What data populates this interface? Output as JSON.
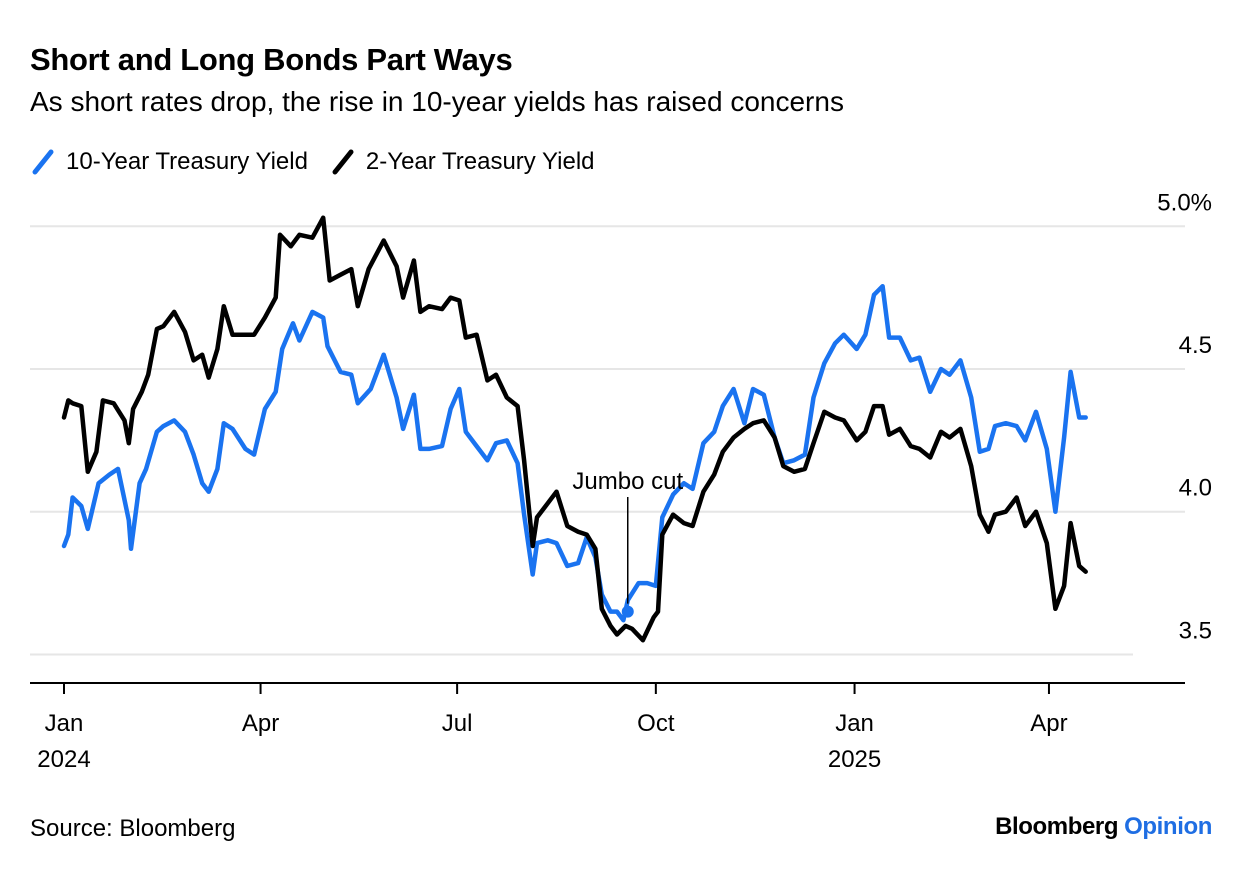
{
  "header": {
    "title": "Short and Long Bonds Part Ways",
    "subtitle": "As short rates drop, the rise in 10-year yields has raised concerns"
  },
  "legend": {
    "items": [
      {
        "label": "10-Year Treasury Yield",
        "color": "#1a73f0"
      },
      {
        "label": "2-Year Treasury Yield",
        "color": "#000000"
      }
    ]
  },
  "footer": {
    "source": "Source: Bloomberg",
    "brand_name": "Bloomberg",
    "brand_suffix": "Opinion"
  },
  "chart_data": {
    "type": "line",
    "y_ticks": [
      3.5,
      4.0,
      4.5,
      5.0
    ],
    "y_tick_labels": [
      "3.5",
      "4.0",
      "4.5",
      "5.0%"
    ],
    "ylim": [
      3.4,
      5.05
    ],
    "y_axis_position": "right",
    "grid": true,
    "legend_position": "top-left",
    "x_range": [
      "2024-01-01",
      "2025-04-20"
    ],
    "x_ticks": [
      {
        "date": "2024-01-01",
        "label": "Jan",
        "sublabel": "2024"
      },
      {
        "date": "2024-04-01",
        "label": "Apr",
        "sublabel": ""
      },
      {
        "date": "2024-07-01",
        "label": "Jul",
        "sublabel": ""
      },
      {
        "date": "2024-10-01",
        "label": "Oct",
        "sublabel": ""
      },
      {
        "date": "2025-01-01",
        "label": "Jan",
        "sublabel": "2025"
      },
      {
        "date": "2025-04-01",
        "label": "Apr",
        "sublabel": ""
      }
    ],
    "annotations": [
      {
        "text": "Jumbo cut",
        "date": "2024-09-18",
        "value": 3.65
      }
    ],
    "series": [
      {
        "name": "10-Year Treasury Yield",
        "color": "#1a73f0",
        "points": [
          [
            "2024-01-01",
            3.88
          ],
          [
            "2024-01-03",
            3.92
          ],
          [
            "2024-01-05",
            4.05
          ],
          [
            "2024-01-09",
            4.02
          ],
          [
            "2024-01-12",
            3.94
          ],
          [
            "2024-01-17",
            4.1
          ],
          [
            "2024-01-22",
            4.13
          ],
          [
            "2024-01-26",
            4.15
          ],
          [
            "2024-01-31",
            3.97
          ],
          [
            "2024-02-01",
            3.87
          ],
          [
            "2024-02-05",
            4.1
          ],
          [
            "2024-02-08",
            4.15
          ],
          [
            "2024-02-13",
            4.28
          ],
          [
            "2024-02-16",
            4.3
          ],
          [
            "2024-02-21",
            4.32
          ],
          [
            "2024-02-26",
            4.28
          ],
          [
            "2024-03-01",
            4.2
          ],
          [
            "2024-03-05",
            4.1
          ],
          [
            "2024-03-08",
            4.07
          ],
          [
            "2024-03-12",
            4.15
          ],
          [
            "2024-03-15",
            4.31
          ],
          [
            "2024-03-19",
            4.29
          ],
          [
            "2024-03-25",
            4.22
          ],
          [
            "2024-03-29",
            4.2
          ],
          [
            "2024-04-03",
            4.36
          ],
          [
            "2024-04-08",
            4.42
          ],
          [
            "2024-04-11",
            4.57
          ],
          [
            "2024-04-16",
            4.66
          ],
          [
            "2024-04-19",
            4.6
          ],
          [
            "2024-04-25",
            4.7
          ],
          [
            "2024-04-30",
            4.68
          ],
          [
            "2024-05-02",
            4.58
          ],
          [
            "2024-05-08",
            4.49
          ],
          [
            "2024-05-13",
            4.48
          ],
          [
            "2024-05-16",
            4.38
          ],
          [
            "2024-05-22",
            4.43
          ],
          [
            "2024-05-28",
            4.55
          ],
          [
            "2024-06-03",
            4.4
          ],
          [
            "2024-06-06",
            4.29
          ],
          [
            "2024-06-11",
            4.41
          ],
          [
            "2024-06-14",
            4.22
          ],
          [
            "2024-06-18",
            4.22
          ],
          [
            "2024-06-24",
            4.23
          ],
          [
            "2024-06-28",
            4.36
          ],
          [
            "2024-07-02",
            4.43
          ],
          [
            "2024-07-05",
            4.28
          ],
          [
            "2024-07-10",
            4.23
          ],
          [
            "2024-07-15",
            4.18
          ],
          [
            "2024-07-19",
            4.24
          ],
          [
            "2024-07-24",
            4.25
          ],
          [
            "2024-07-29",
            4.17
          ],
          [
            "2024-08-01",
            3.99
          ],
          [
            "2024-08-05",
            3.78
          ],
          [
            "2024-08-07",
            3.89
          ],
          [
            "2024-08-12",
            3.9
          ],
          [
            "2024-08-16",
            3.89
          ],
          [
            "2024-08-21",
            3.81
          ],
          [
            "2024-08-26",
            3.82
          ],
          [
            "2024-08-30",
            3.91
          ],
          [
            "2024-09-03",
            3.84
          ],
          [
            "2024-09-06",
            3.71
          ],
          [
            "2024-09-10",
            3.65
          ],
          [
            "2024-09-13",
            3.65
          ],
          [
            "2024-09-16",
            3.62
          ],
          [
            "2024-09-18",
            3.69
          ],
          [
            "2024-09-23",
            3.75
          ],
          [
            "2024-09-27",
            3.75
          ],
          [
            "2024-10-01",
            3.74
          ],
          [
            "2024-10-04",
            3.98
          ],
          [
            "2024-10-09",
            4.06
          ],
          [
            "2024-10-14",
            4.1
          ],
          [
            "2024-10-18",
            4.08
          ],
          [
            "2024-10-23",
            4.24
          ],
          [
            "2024-10-28",
            4.28
          ],
          [
            "2024-11-01",
            4.37
          ],
          [
            "2024-11-06",
            4.43
          ],
          [
            "2024-11-11",
            4.31
          ],
          [
            "2024-11-15",
            4.43
          ],
          [
            "2024-11-20",
            4.41
          ],
          [
            "2024-11-25",
            4.26
          ],
          [
            "2024-11-29",
            4.17
          ],
          [
            "2024-12-04",
            4.18
          ],
          [
            "2024-12-09",
            4.2
          ],
          [
            "2024-12-13",
            4.4
          ],
          [
            "2024-12-18",
            4.52
          ],
          [
            "2024-12-23",
            4.59
          ],
          [
            "2024-12-27",
            4.62
          ],
          [
            "2025-01-02",
            4.57
          ],
          [
            "2025-01-06",
            4.62
          ],
          [
            "2025-01-10",
            4.76
          ],
          [
            "2025-01-14",
            4.79
          ],
          [
            "2025-01-17",
            4.61
          ],
          [
            "2025-01-22",
            4.61
          ],
          [
            "2025-01-27",
            4.53
          ],
          [
            "2025-01-31",
            4.54
          ],
          [
            "2025-02-05",
            4.42
          ],
          [
            "2025-02-10",
            4.5
          ],
          [
            "2025-02-14",
            4.48
          ],
          [
            "2025-02-19",
            4.53
          ],
          [
            "2025-02-24",
            4.4
          ],
          [
            "2025-02-28",
            4.21
          ],
          [
            "2025-03-04",
            4.22
          ],
          [
            "2025-03-07",
            4.3
          ],
          [
            "2025-03-12",
            4.31
          ],
          [
            "2025-03-17",
            4.3
          ],
          [
            "2025-03-21",
            4.25
          ],
          [
            "2025-03-26",
            4.35
          ],
          [
            "2025-03-31",
            4.22
          ],
          [
            "2025-04-04",
            4.0
          ],
          [
            "2025-04-08",
            4.26
          ],
          [
            "2025-04-11",
            4.49
          ],
          [
            "2025-04-15",
            4.33
          ],
          [
            "2025-04-18",
            4.33
          ]
        ]
      },
      {
        "name": "2-Year Treasury Yield",
        "color": "#000000",
        "points": [
          [
            "2024-01-01",
            4.33
          ],
          [
            "2024-01-03",
            4.39
          ],
          [
            "2024-01-05",
            4.38
          ],
          [
            "2024-01-09",
            4.37
          ],
          [
            "2024-01-12",
            4.14
          ],
          [
            "2024-01-16",
            4.21
          ],
          [
            "2024-01-19",
            4.39
          ],
          [
            "2024-01-24",
            4.38
          ],
          [
            "2024-01-29",
            4.32
          ],
          [
            "2024-01-31",
            4.24
          ],
          [
            "2024-02-02",
            4.36
          ],
          [
            "2024-02-06",
            4.42
          ],
          [
            "2024-02-09",
            4.48
          ],
          [
            "2024-02-13",
            4.64
          ],
          [
            "2024-02-16",
            4.65
          ],
          [
            "2024-02-21",
            4.7
          ],
          [
            "2024-02-26",
            4.63
          ],
          [
            "2024-03-01",
            4.53
          ],
          [
            "2024-03-05",
            4.55
          ],
          [
            "2024-03-08",
            4.47
          ],
          [
            "2024-03-12",
            4.57
          ],
          [
            "2024-03-15",
            4.72
          ],
          [
            "2024-03-19",
            4.62
          ],
          [
            "2024-03-25",
            4.62
          ],
          [
            "2024-03-29",
            4.62
          ],
          [
            "2024-04-03",
            4.68
          ],
          [
            "2024-04-08",
            4.75
          ],
          [
            "2024-04-10",
            4.97
          ],
          [
            "2024-04-15",
            4.93
          ],
          [
            "2024-04-19",
            4.97
          ],
          [
            "2024-04-25",
            4.96
          ],
          [
            "2024-04-30",
            5.03
          ],
          [
            "2024-05-03",
            4.81
          ],
          [
            "2024-05-08",
            4.83
          ],
          [
            "2024-05-13",
            4.85
          ],
          [
            "2024-05-16",
            4.72
          ],
          [
            "2024-05-21",
            4.85
          ],
          [
            "2024-05-28",
            4.95
          ],
          [
            "2024-06-03",
            4.86
          ],
          [
            "2024-06-06",
            4.75
          ],
          [
            "2024-06-11",
            4.88
          ],
          [
            "2024-06-14",
            4.7
          ],
          [
            "2024-06-18",
            4.72
          ],
          [
            "2024-06-24",
            4.71
          ],
          [
            "2024-06-28",
            4.75
          ],
          [
            "2024-07-02",
            4.74
          ],
          [
            "2024-07-05",
            4.61
          ],
          [
            "2024-07-10",
            4.62
          ],
          [
            "2024-07-15",
            4.46
          ],
          [
            "2024-07-19",
            4.48
          ],
          [
            "2024-07-24",
            4.4
          ],
          [
            "2024-07-29",
            4.37
          ],
          [
            "2024-08-01",
            4.18
          ],
          [
            "2024-08-05",
            3.88
          ],
          [
            "2024-08-07",
            3.98
          ],
          [
            "2024-08-12",
            4.03
          ],
          [
            "2024-08-16",
            4.07
          ],
          [
            "2024-08-21",
            3.95
          ],
          [
            "2024-08-26",
            3.93
          ],
          [
            "2024-08-30",
            3.92
          ],
          [
            "2024-09-03",
            3.87
          ],
          [
            "2024-09-06",
            3.66
          ],
          [
            "2024-09-10",
            3.6
          ],
          [
            "2024-09-13",
            3.57
          ],
          [
            "2024-09-17",
            3.6
          ],
          [
            "2024-09-20",
            3.59
          ],
          [
            "2024-09-25",
            3.55
          ],
          [
            "2024-09-30",
            3.63
          ],
          [
            "2024-10-02",
            3.65
          ],
          [
            "2024-10-04",
            3.92
          ],
          [
            "2024-10-09",
            3.99
          ],
          [
            "2024-10-14",
            3.96
          ],
          [
            "2024-10-18",
            3.95
          ],
          [
            "2024-10-23",
            4.07
          ],
          [
            "2024-10-28",
            4.13
          ],
          [
            "2024-11-01",
            4.21
          ],
          [
            "2024-11-06",
            4.26
          ],
          [
            "2024-11-11",
            4.29
          ],
          [
            "2024-11-15",
            4.31
          ],
          [
            "2024-11-20",
            4.32
          ],
          [
            "2024-11-25",
            4.26
          ],
          [
            "2024-11-29",
            4.16
          ],
          [
            "2024-12-04",
            4.14
          ],
          [
            "2024-12-09",
            4.15
          ],
          [
            "2024-12-13",
            4.24
          ],
          [
            "2024-12-18",
            4.35
          ],
          [
            "2024-12-23",
            4.33
          ],
          [
            "2024-12-27",
            4.32
          ],
          [
            "2025-01-02",
            4.25
          ],
          [
            "2025-01-06",
            4.28
          ],
          [
            "2025-01-10",
            4.37
          ],
          [
            "2025-01-14",
            4.37
          ],
          [
            "2025-01-17",
            4.27
          ],
          [
            "2025-01-22",
            4.29
          ],
          [
            "2025-01-27",
            4.23
          ],
          [
            "2025-01-31",
            4.22
          ],
          [
            "2025-02-05",
            4.19
          ],
          [
            "2025-02-10",
            4.28
          ],
          [
            "2025-02-14",
            4.26
          ],
          [
            "2025-02-19",
            4.29
          ],
          [
            "2025-02-24",
            4.16
          ],
          [
            "2025-02-28",
            3.99
          ],
          [
            "2025-03-04",
            3.93
          ],
          [
            "2025-03-07",
            3.99
          ],
          [
            "2025-03-12",
            4.0
          ],
          [
            "2025-03-17",
            4.05
          ],
          [
            "2025-03-21",
            3.95
          ],
          [
            "2025-03-26",
            4.0
          ],
          [
            "2025-03-31",
            3.89
          ],
          [
            "2025-04-04",
            3.66
          ],
          [
            "2025-04-08",
            3.74
          ],
          [
            "2025-04-11",
            3.96
          ],
          [
            "2025-04-15",
            3.81
          ],
          [
            "2025-04-18",
            3.79
          ]
        ]
      }
    ]
  }
}
